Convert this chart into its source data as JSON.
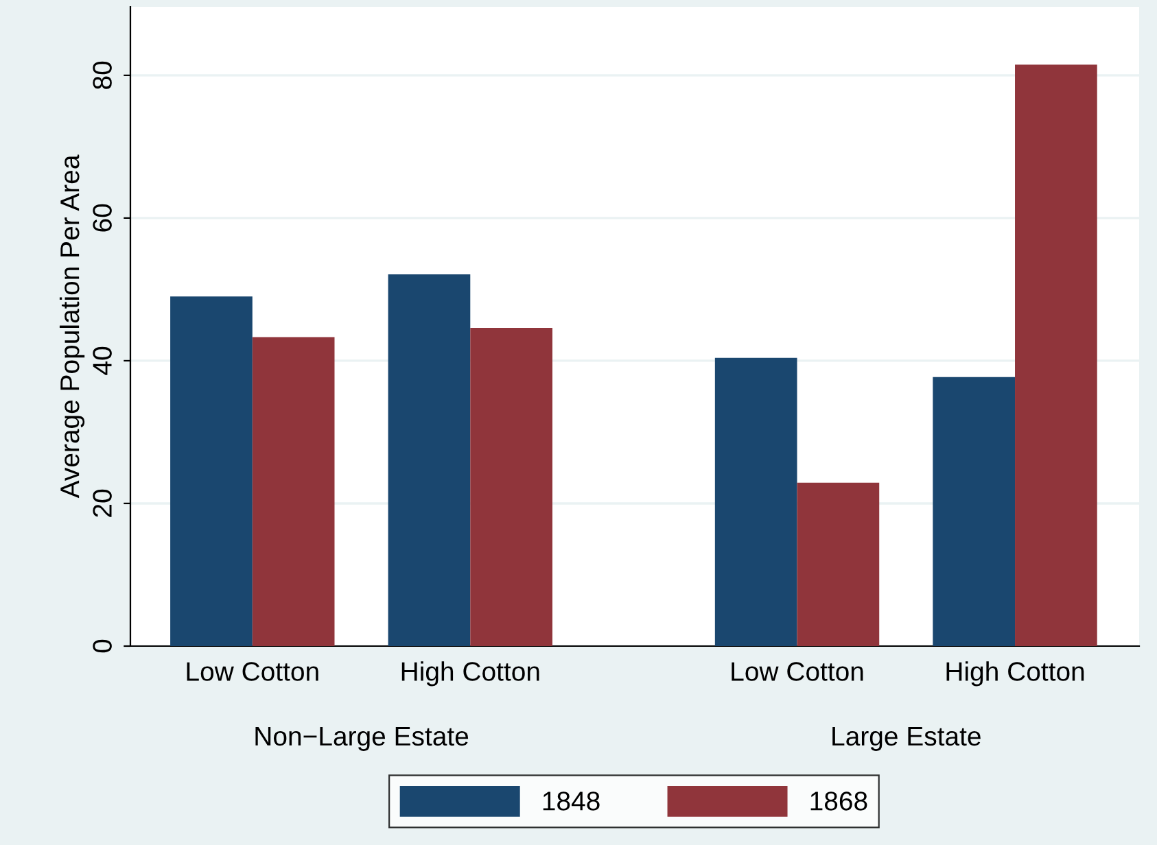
{
  "chart_data": {
    "type": "bar",
    "ylabel": "Average Population Per Area",
    "categories": [
      "Low Cotton",
      "High Cotton",
      "Low Cotton",
      "High Cotton"
    ],
    "annotations": [
      "Non−Large Estate",
      "Large Estate"
    ],
    "series": [
      {
        "name": "1848",
        "color": "#1a476f",
        "values": [
          49.0,
          52.1,
          40.4,
          37.7
        ]
      },
      {
        "name": "1868",
        "color": "#90353b",
        "values": [
          43.3,
          44.6,
          22.9,
          81.5
        ]
      }
    ],
    "ylim": [
      0,
      89.6
    ],
    "yticks": [
      0,
      20,
      40,
      60,
      80
    ],
    "grid": "y",
    "legend": "bottom"
  }
}
